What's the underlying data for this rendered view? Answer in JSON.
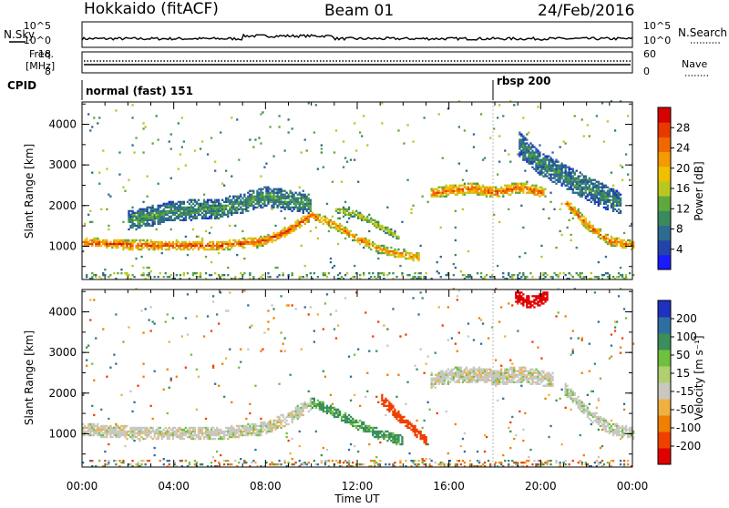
{
  "header": {
    "station": "Hokkaido (fitACF)",
    "beam": "Beam 01",
    "date": "24/Feb/2016"
  },
  "top_panels": {
    "nsky_label": "N.Sky",
    "nsearch_label": "N.Search",
    "freq_label_1": "Freq.",
    "freq_label_2": "[MHz]",
    "nave_label": "Nave",
    "cpid_label": "CPID",
    "noise_left_ticks": [
      "10^5",
      "10^0"
    ],
    "noise_right_ticks": [
      "10^5",
      "10^0"
    ],
    "freq_ticks": [
      "18",
      "8"
    ],
    "nave_ticks": [
      "60",
      "0"
    ],
    "cpid_modes": [
      {
        "label": "normal (fast) 151",
        "start_hour": 0
      },
      {
        "label": "rbsp 200",
        "start_hour": 18
      }
    ]
  },
  "chart_data": [
    {
      "type": "heatmap",
      "panel": "power",
      "ylabel": "Slant Range [km]",
      "xlabel": "",
      "x_range_hours": [
        0,
        24
      ],
      "ylim": [
        180,
        4550
      ],
      "y_ticks": [
        "1000",
        "2000",
        "3000",
        "4000"
      ],
      "colorbar": {
        "label": "Power [dB]",
        "ticks": [
          "28",
          "24",
          "20",
          "16",
          "12",
          "8",
          "4"
        ],
        "colors": [
          "#1a1aff",
          "#2244aa",
          "#2e6b8f",
          "#3a8a5e",
          "#5fa83c",
          "#b8c820",
          "#f0c000",
          "#f59a00",
          "#f06800",
          "#e83800",
          "#d80000"
        ]
      },
      "echo_bands": [
        {
          "t": [
            0,
            2,
            4,
            6,
            8,
            9,
            10
          ],
          "r": [
            1080,
            1010,
            1000,
            990,
            1120,
            1370,
            1750
          ],
          "w": 120,
          "level": 0.85
        },
        {
          "t": [
            10,
            11,
            12,
            13,
            14,
            14.7
          ],
          "r": [
            1750,
            1500,
            1150,
            900,
            760,
            700
          ],
          "w": 110,
          "level": 0.75
        },
        {
          "t": [
            11,
            12,
            13,
            13.8
          ],
          "r": [
            1900,
            1750,
            1450,
            1200
          ],
          "w": 90,
          "level": 0.55
        },
        {
          "t": [
            15.2,
            16,
            17,
            18,
            19,
            20.2
          ],
          "r": [
            2280,
            2350,
            2400,
            2300,
            2420,
            2300
          ],
          "w": 140,
          "level": 0.8
        },
        {
          "t": [
            21,
            22,
            23,
            24
          ],
          "r": [
            2100,
            1500,
            1100,
            1000
          ],
          "w": 120,
          "level": 0.8
        },
        {
          "t": [
            2,
            4,
            6,
            8,
            10
          ],
          "r": [
            1600,
            1850,
            1900,
            2200,
            2000
          ],
          "w": 250,
          "level": 0.35
        },
        {
          "t": [
            19,
            20,
            21,
            22,
            23.5
          ],
          "r": [
            3500,
            3000,
            2700,
            2400,
            2000
          ],
          "w": 300,
          "level": 0.3
        }
      ]
    },
    {
      "type": "heatmap",
      "panel": "velocity",
      "ylabel": "Slant Range [km]",
      "xlabel": "Time UT",
      "x_range_hours": [
        0,
        24
      ],
      "x_ticks": [
        "00:00",
        "04:00",
        "08:00",
        "12:00",
        "16:00",
        "20:00",
        "00:00"
      ],
      "ylim": [
        180,
        4550
      ],
      "y_ticks": [
        "1000",
        "2000",
        "3000",
        "4000"
      ],
      "colorbar": {
        "label": "Velocity [m s⁻¹]",
        "ticks": [
          "200",
          "100",
          "50",
          "15",
          "-15",
          "-50",
          "-100",
          "-200"
        ],
        "colors": [
          "#2030c0",
          "#2f6fa0",
          "#3a8f5a",
          "#70c040",
          "#b0d070",
          "#c8c8c0",
          "#f0b040",
          "#f08000",
          "#f04000",
          "#e00000"
        ]
      },
      "echo_bands": [
        {
          "t": [
            0,
            2,
            4,
            6,
            8,
            9,
            10
          ],
          "r": [
            1080,
            1010,
            1000,
            990,
            1120,
            1370,
            1750
          ],
          "w": 160,
          "vel": 0
        },
        {
          "t": [
            10,
            11,
            12,
            13,
            14
          ],
          "r": [
            1750,
            1500,
            1200,
            950,
            800
          ],
          "w": 130,
          "vel": 60
        },
        {
          "t": [
            13,
            13.8,
            14.5,
            15
          ],
          "r": [
            1850,
            1400,
            1050,
            800
          ],
          "w": 120,
          "vel": -120
        },
        {
          "t": [
            15.2,
            16,
            17,
            18,
            19,
            20.5
          ],
          "r": [
            2280,
            2400,
            2450,
            2350,
            2450,
            2300
          ],
          "w": 200,
          "vel": 0
        },
        {
          "t": [
            21,
            22,
            23,
            24
          ],
          "r": [
            2100,
            1500,
            1100,
            1000
          ],
          "w": 150,
          "vel": 5
        },
        {
          "t": [
            18.8,
            19.5,
            20.3
          ],
          "r": [
            4400,
            4200,
            4350
          ],
          "w": 150,
          "vel": -220
        }
      ]
    }
  ]
}
